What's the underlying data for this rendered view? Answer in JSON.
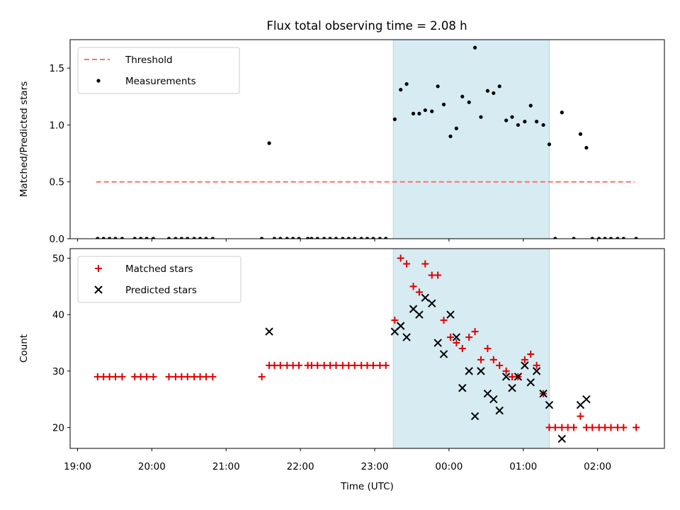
{
  "title": "Flux total observing time = 2.08 h",
  "colors": {
    "threshold": "#ff6f6f",
    "measurement": "#000000",
    "matched": "#e00000",
    "predicted": "#000000",
    "span": "#add8e6"
  },
  "chart_data": [
    {
      "type": "scatter",
      "ylabel": "Matched/Predicted stars",
      "ylim": [
        0,
        1.75
      ],
      "yticks": [
        0.0,
        0.5,
        1.0,
        1.5
      ],
      "ytick_labels": [
        "0.0",
        "0.5",
        "1.0",
        "1.5"
      ],
      "x_unit": "hours (19.0 = 19:00 UTC, 24.0 = 00:00 UTC next day)",
      "xlim": [
        18.9,
        26.9
      ],
      "shaded_span": [
        23.25,
        25.35
      ],
      "legend": {
        "placement": "upper left",
        "entries": [
          "Threshold",
          "Measurements"
        ]
      },
      "threshold": {
        "name": "Threshold",
        "x": [
          19.25,
          26.5
        ],
        "y": 0.5,
        "style": "dashed"
      },
      "series": [
        {
          "name": "Measurements",
          "x": [
            19.27,
            19.35,
            19.43,
            19.51,
            19.6,
            19.77,
            19.85,
            19.93,
            20.02,
            20.23,
            20.32,
            20.4,
            20.48,
            20.57,
            20.65,
            20.73,
            20.82,
            21.48,
            21.58,
            21.65,
            21.73,
            21.82,
            21.9,
            21.98,
            22.1,
            22.15,
            22.23,
            22.32,
            22.4,
            22.48,
            22.57,
            22.65,
            22.73,
            22.82,
            22.9,
            22.98,
            23.07,
            23.15,
            23.27,
            23.35,
            23.43,
            23.52,
            23.6,
            23.68,
            23.77,
            23.85,
            23.93,
            24.02,
            24.1,
            24.18,
            24.27,
            24.35,
            24.43,
            24.52,
            24.6,
            24.68,
            24.77,
            24.85,
            24.93,
            25.02,
            25.1,
            25.18,
            25.27,
            25.35,
            25.43,
            25.52,
            25.68,
            25.77,
            25.85,
            25.93,
            26.02,
            26.1,
            26.18,
            26.27,
            26.35,
            26.52
          ],
          "y": [
            0,
            0,
            0,
            0,
            0,
            0,
            0,
            0,
            0,
            0,
            0,
            0,
            0,
            0,
            0,
            0,
            0,
            0,
            0.84,
            0,
            0,
            0,
            0,
            0,
            0,
            0,
            0,
            0,
            0,
            0,
            0,
            0,
            0,
            0,
            0,
            0,
            0,
            0,
            1.05,
            1.31,
            1.36,
            1.1,
            1.1,
            1.13,
            1.12,
            1.34,
            1.18,
            0.9,
            0.97,
            1.25,
            1.2,
            1.68,
            1.07,
            1.3,
            1.28,
            1.34,
            1.04,
            1.07,
            1.0,
            1.03,
            1.17,
            1.03,
            1.0,
            0.83,
            0,
            1.11,
            0,
            0.92,
            0.8,
            0,
            0,
            0,
            0,
            0,
            0,
            0
          ]
        }
      ]
    },
    {
      "type": "scatter",
      "ylabel": "Count",
      "xlabel": "Time (UTC)",
      "ylim": [
        16.3,
        51.7
      ],
      "yticks": [
        20,
        30,
        40,
        50
      ],
      "ytick_labels": [
        "20",
        "30",
        "40",
        "50"
      ],
      "x_unit": "hours (19.0 = 19:00 UTC, 24.0 = 00:00 UTC next day)",
      "xlim": [
        18.9,
        26.9
      ],
      "xticks": [
        19,
        20,
        21,
        22,
        23,
        24,
        25,
        26
      ],
      "xtick_labels": [
        "19:00",
        "20:00",
        "21:00",
        "22:00",
        "23:00",
        "00:00",
        "01:00",
        "02:00"
      ],
      "shaded_span": [
        23.25,
        25.35
      ],
      "legend": {
        "placement": "upper left",
        "entries": [
          "Matched stars",
          "Predicted stars"
        ]
      },
      "series": [
        {
          "name": "Matched stars",
          "marker": "plus",
          "x": [
            19.27,
            19.35,
            19.43,
            19.51,
            19.6,
            19.77,
            19.85,
            19.93,
            20.02,
            20.23,
            20.32,
            20.4,
            20.48,
            20.57,
            20.65,
            20.73,
            20.82,
            21.48,
            21.58,
            21.65,
            21.73,
            21.82,
            21.9,
            21.98,
            22.1,
            22.15,
            22.23,
            22.32,
            22.4,
            22.48,
            22.57,
            22.65,
            22.73,
            22.82,
            22.9,
            22.98,
            23.07,
            23.15,
            23.27,
            23.35,
            23.43,
            23.52,
            23.6,
            23.68,
            23.77,
            23.85,
            23.93,
            24.02,
            24.1,
            24.18,
            24.27,
            24.35,
            24.43,
            24.52,
            24.6,
            24.68,
            24.77,
            24.85,
            24.93,
            25.02,
            25.1,
            25.18,
            25.27,
            25.35,
            25.43,
            25.52,
            25.6,
            25.68,
            25.77,
            25.85,
            25.93,
            26.02,
            26.1,
            26.18,
            26.27,
            26.35,
            26.52
          ],
          "y": [
            29,
            29,
            29,
            29,
            29,
            29,
            29,
            29,
            29,
            29,
            29,
            29,
            29,
            29,
            29,
            29,
            29,
            29,
            31,
            31,
            31,
            31,
            31,
            31,
            31,
            31,
            31,
            31,
            31,
            31,
            31,
            31,
            31,
            31,
            31,
            31,
            31,
            31,
            39,
            50,
            49,
            45,
            44,
            49,
            47,
            47,
            39,
            36,
            35,
            34,
            36,
            37,
            32,
            34,
            32,
            31,
            30,
            29,
            29,
            32,
            33,
            31,
            26,
            20,
            20,
            20,
            20,
            20,
            22,
            20,
            20,
            20,
            20,
            20,
            20,
            20,
            20
          ]
        },
        {
          "name": "Predicted stars",
          "marker": "cross",
          "x": [
            21.58,
            23.27,
            23.35,
            23.43,
            23.52,
            23.6,
            23.68,
            23.77,
            23.85,
            23.93,
            24.02,
            24.1,
            24.18,
            24.27,
            24.35,
            24.43,
            24.52,
            24.6,
            24.68,
            24.77,
            24.85,
            24.93,
            25.02,
            25.1,
            25.18,
            25.27,
            25.35,
            25.52,
            25.77,
            25.85
          ],
          "y": [
            37,
            37,
            38,
            36,
            41,
            40,
            43,
            42,
            35,
            33,
            40,
            36,
            27,
            30,
            22,
            30,
            26,
            25,
            23,
            29,
            27,
            29,
            31,
            28,
            30,
            26,
            24,
            18,
            24,
            25
          ]
        }
      ]
    }
  ]
}
